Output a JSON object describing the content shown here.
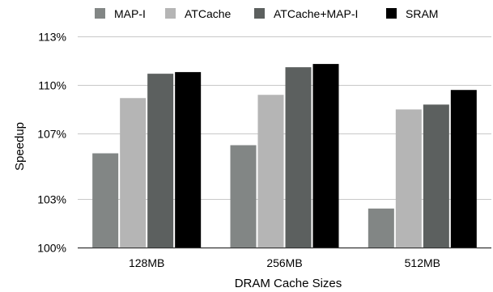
{
  "chart_data": {
    "type": "bar",
    "categories": [
      "128MB",
      "256MB",
      "512MB"
    ],
    "series": [
      {
        "name": "MAP-I",
        "values": [
          105.8,
          106.3,
          102.4
        ],
        "color": "#828685"
      },
      {
        "name": "ATCache",
        "values": [
          109.2,
          109.4,
          108.5
        ],
        "color": "#b5b5b5"
      },
      {
        "name": "ATCache+MAP-I",
        "values": [
          110.7,
          111.1,
          108.8
        ],
        "color": "#5c605f"
      },
      {
        "name": "SRAM",
        "values": [
          110.8,
          111.3,
          109.7
        ],
        "color": "#000000"
      }
    ],
    "yticks": [
      100,
      103,
      107,
      110,
      113
    ],
    "ytick_labels": [
      "100%",
      "103%",
      "107%",
      "110%",
      "113%"
    ],
    "ylim": [
      100,
      112.5
    ],
    "xlabel": "DRAM Cache Sizes",
    "ylabel": "Speedup",
    "legend_position": "top",
    "grid": "horizontal"
  }
}
